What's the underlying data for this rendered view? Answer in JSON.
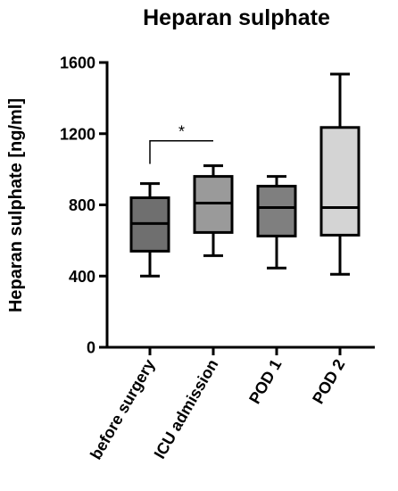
{
  "chart_data": {
    "type": "boxplot",
    "title": "Heparan sulphate",
    "ylabel": "Heparan sulphate [ng/ml]",
    "xlabel": "",
    "ylim": [
      0,
      1600
    ],
    "yticks": [
      0,
      400,
      800,
      1200,
      1600
    ],
    "yticks_text": [
      "0",
      "400",
      "800",
      "1200",
      "1600"
    ],
    "grid": false,
    "legend": "none",
    "categories": [
      "before surgery",
      "ICU admission",
      "POD 1",
      "POD 2"
    ],
    "boxes": [
      {
        "category": "before surgery",
        "min": 400,
        "q1": 540,
        "median": 695,
        "q3": 840,
        "max": 920,
        "fill": "#6f6f6f"
      },
      {
        "category": "ICU admission",
        "min": 515,
        "q1": 645,
        "median": 810,
        "q3": 960,
        "max": 1020,
        "fill": "#9a9a9a"
      },
      {
        "category": "POD 1",
        "min": 445,
        "q1": 625,
        "median": 785,
        "q3": 905,
        "max": 960,
        "fill": "#7f7f7f"
      },
      {
        "category": "POD 2",
        "min": 410,
        "q1": 630,
        "median": 785,
        "q3": 1235,
        "max": 1535,
        "fill": "#d4d4d4"
      }
    ],
    "annotations": [
      {
        "text": "*",
        "from": "before surgery",
        "to": "ICU admission",
        "y": 1160,
        "drop_to": 1030
      }
    ]
  }
}
